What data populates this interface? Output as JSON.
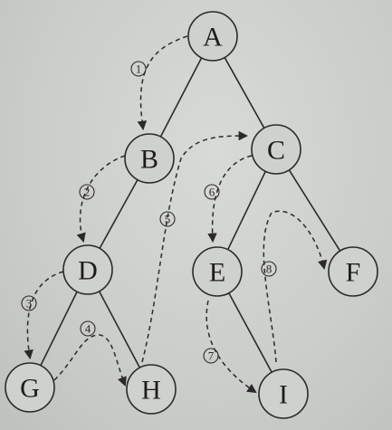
{
  "nodes": [
    {
      "id": "A",
      "label": "A"
    },
    {
      "id": "B",
      "label": "B"
    },
    {
      "id": "C",
      "label": "C"
    },
    {
      "id": "D",
      "label": "D"
    },
    {
      "id": "E",
      "label": "E"
    },
    {
      "id": "F",
      "label": "F"
    },
    {
      "id": "G",
      "label": "G"
    },
    {
      "id": "H",
      "label": "H"
    },
    {
      "id": "I",
      "label": "I"
    }
  ],
  "edges": [
    [
      "A",
      "B"
    ],
    [
      "A",
      "C"
    ],
    [
      "B",
      "D"
    ],
    [
      "C",
      "E"
    ],
    [
      "C",
      "F"
    ],
    [
      "D",
      "G"
    ],
    [
      "D",
      "H"
    ],
    [
      "E",
      "I"
    ]
  ],
  "traversal_steps": [
    {
      "number": "1",
      "from": "A",
      "to": "B"
    },
    {
      "number": "2",
      "from": "B",
      "to": "D"
    },
    {
      "number": "3",
      "from": "D",
      "to": "G"
    },
    {
      "number": "4",
      "from": "G",
      "to": "H"
    },
    {
      "number": "5",
      "from": "H",
      "to": "C"
    },
    {
      "number": "6",
      "from": "C",
      "to": "E"
    },
    {
      "number": "7",
      "from": "E",
      "to": "I"
    },
    {
      "number": "8",
      "from": "I",
      "to": "F"
    }
  ]
}
